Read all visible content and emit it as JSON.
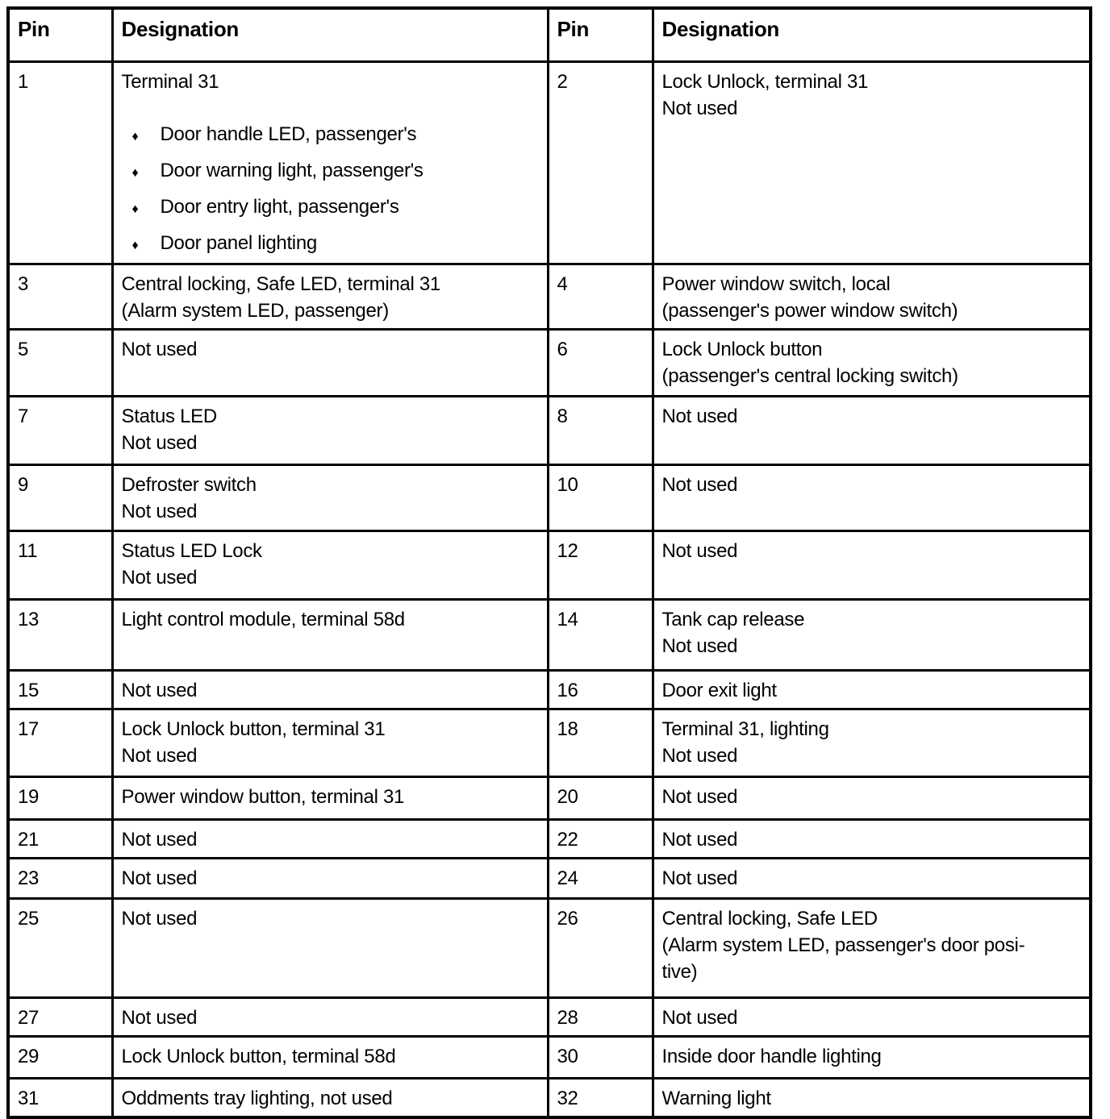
{
  "page": {
    "background_color": "#ffffff",
    "text_color": "#000000",
    "border_color": "#000000"
  },
  "table": {
    "headers": [
      "Pin",
      "Designation",
      "Pin",
      "Designation"
    ],
    "bullet_glyph": "♦",
    "rows": [
      {
        "cells": [
          {
            "pin": "1",
            "lines": [
              "Terminal 31"
            ],
            "bullets": [
              "Door handle LED, passenger's",
              "Door warning light, passenger's",
              "Door entry light, passenger's",
              "Door panel lighting"
            ]
          },
          {
            "pin": "2",
            "lines": [
              "Lock Unlock, terminal 31",
              "Not used"
            ]
          }
        ]
      },
      {
        "cells": [
          {
            "pin": "3",
            "lines": [
              "Central locking, Safe LED, terminal 31",
              "(Alarm system LED, passenger)"
            ]
          },
          {
            "pin": "4",
            "lines": [
              "Power window switch, local",
              "(passenger's power window switch)"
            ]
          }
        ]
      },
      {
        "cells": [
          {
            "pin": "5",
            "lines": [
              "Not used"
            ]
          },
          {
            "pin": "6",
            "lines": [
              "Lock Unlock button",
              "(passenger's central locking switch)"
            ]
          }
        ]
      },
      {
        "cells": [
          {
            "pin": "7",
            "lines": [
              "Status LED",
              "Not used"
            ]
          },
          {
            "pin": "8",
            "lines": [
              "Not used"
            ]
          }
        ]
      },
      {
        "cells": [
          {
            "pin": "9",
            "lines": [
              "Defroster switch",
              "Not used"
            ]
          },
          {
            "pin": "10",
            "lines": [
              "Not used"
            ]
          }
        ]
      },
      {
        "cells": [
          {
            "pin": "11",
            "lines": [
              "Status LED Lock",
              "Not used"
            ]
          },
          {
            "pin": "12",
            "lines": [
              "Not used"
            ]
          }
        ]
      },
      {
        "cells": [
          {
            "pin": "13",
            "lines": [
              "Light control module, terminal 58d"
            ]
          },
          {
            "pin": "14",
            "lines": [
              "Tank cap release",
              "Not used"
            ]
          }
        ]
      },
      {
        "cells": [
          {
            "pin": "15",
            "lines": [
              "Not used"
            ]
          },
          {
            "pin": "16",
            "lines": [
              "Door exit light"
            ]
          }
        ]
      },
      {
        "cells": [
          {
            "pin": "17",
            "lines": [
              "Lock Unlock button, terminal 31",
              "Not used"
            ]
          },
          {
            "pin": "18",
            "lines": [
              "Terminal 31, lighting",
              "Not used"
            ]
          }
        ]
      },
      {
        "cells": [
          {
            "pin": "19",
            "lines": [
              "Power window button, terminal 31"
            ]
          },
          {
            "pin": "20",
            "lines": [
              "Not used"
            ]
          }
        ]
      },
      {
        "cells": [
          {
            "pin": "21",
            "lines": [
              "Not used"
            ]
          },
          {
            "pin": "22",
            "lines": [
              "Not used"
            ]
          }
        ]
      },
      {
        "cells": [
          {
            "pin": "23",
            "lines": [
              "Not used"
            ]
          },
          {
            "pin": "24",
            "lines": [
              "Not used"
            ]
          }
        ]
      },
      {
        "cells": [
          {
            "pin": "25",
            "lines": [
              "Not used"
            ]
          },
          {
            "pin": "26",
            "lines": [
              "Central locking, Safe LED",
              "(Alarm system LED, passenger's door posi-",
              "tive)"
            ]
          }
        ]
      },
      {
        "cells": [
          {
            "pin": "27",
            "lines": [
              "Not used"
            ]
          },
          {
            "pin": "28",
            "lines": [
              "Not used"
            ]
          }
        ]
      },
      {
        "cells": [
          {
            "pin": "29",
            "lines": [
              "Lock Unlock button, terminal 58d"
            ]
          },
          {
            "pin": "30",
            "lines": [
              "Inside door handle lighting"
            ]
          }
        ]
      },
      {
        "cells": [
          {
            "pin": "31",
            "lines": [
              "Oddments tray lighting, not used"
            ]
          },
          {
            "pin": "32",
            "lines": [
              "Warning light"
            ]
          }
        ]
      }
    ]
  }
}
